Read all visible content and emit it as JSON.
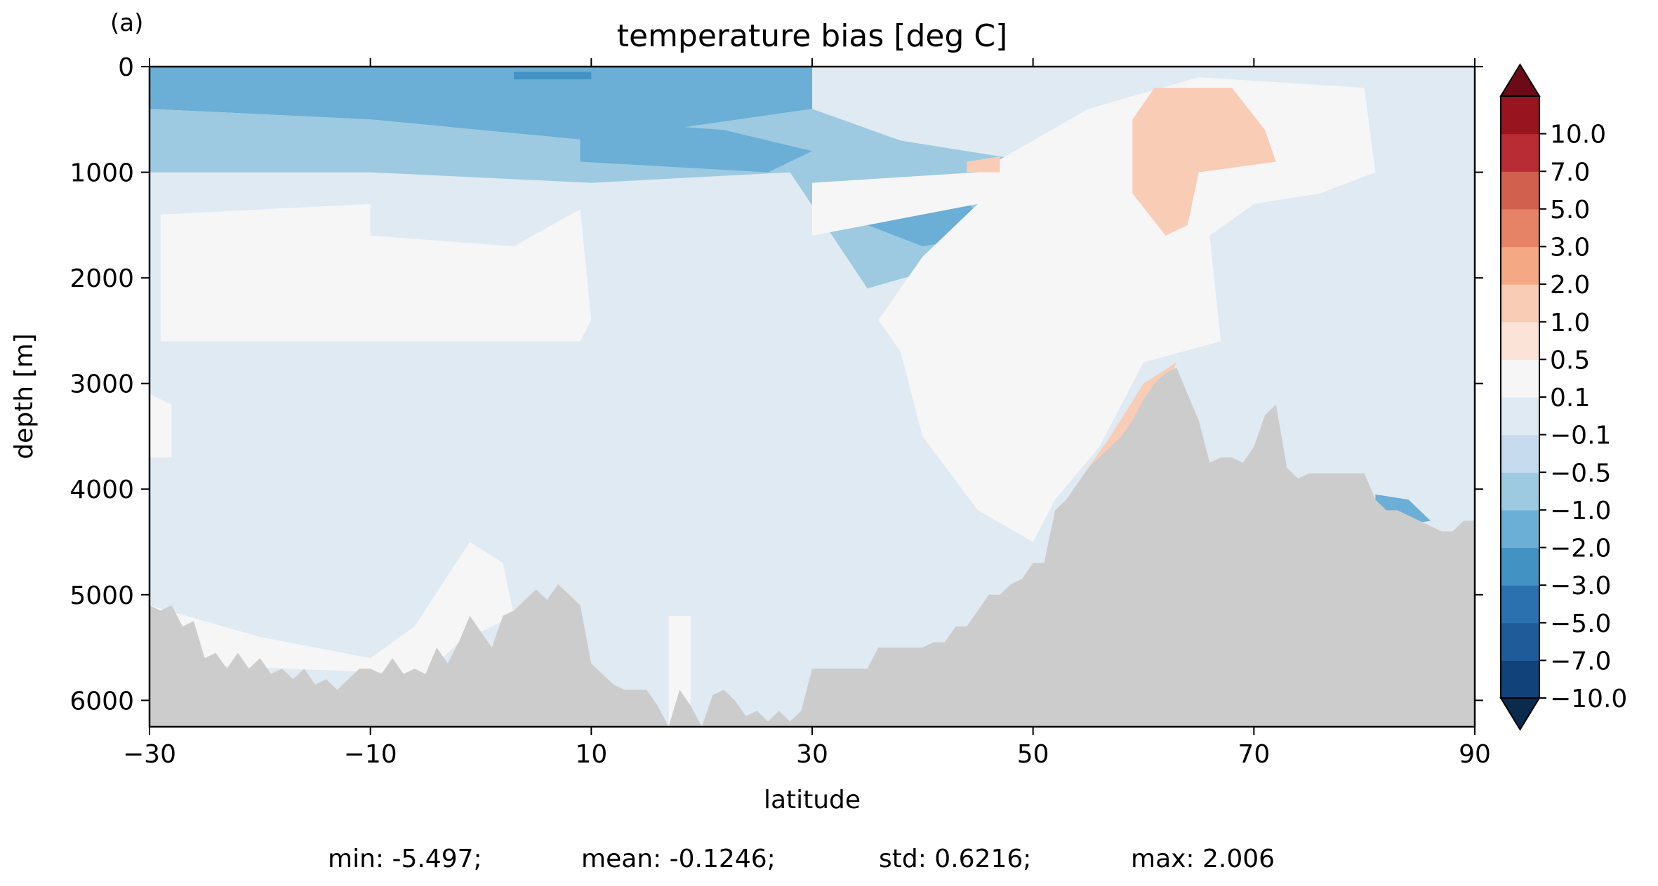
{
  "chart_data": {
    "type": "heatmap",
    "panel_label": "(a)",
    "title": "temperature bias [deg C]",
    "xlabel": "latitude",
    "ylabel": "depth [m]",
    "xlim": [
      -30,
      90
    ],
    "ylim": [
      6250,
      0
    ],
    "y_inverted": true,
    "x_ticks": [
      -30,
      -10,
      10,
      30,
      50,
      70,
      90
    ],
    "x_tick_labels": [
      "−30",
      "−10",
      "10",
      "30",
      "50",
      "70",
      "90"
    ],
    "y_ticks": [
      0,
      1000,
      2000,
      3000,
      4000,
      5000,
      6000
    ],
    "y_tick_labels": [
      "0",
      "1000",
      "2000",
      "3000",
      "4000",
      "5000",
      "6000"
    ],
    "colorbar": {
      "levels": [
        -10,
        -7,
        -5,
        -3,
        -2,
        -1,
        -0.5,
        -0.1,
        0.1,
        0.5,
        1,
        2,
        3,
        5,
        7,
        10
      ],
      "labels": [
        "−10.0",
        "−7.0",
        "−5.0",
        "−3.0",
        "−2.0",
        "−1.0",
        "−0.5",
        "−0.1",
        "0.1",
        "0.5",
        "1.0",
        "2.0",
        "3.0",
        "5.0",
        "7.0",
        "10.0"
      ],
      "colors": [
        "#11427a",
        "#1f5b99",
        "#2b71b0",
        "#4293c4",
        "#6baed6",
        "#9dcae1",
        "#c6dcee",
        "#dfeaf3",
        "#f6f6f6",
        "#fbe3d7",
        "#f9ccb6",
        "#f4a883",
        "#e68265",
        "#d1604e",
        "#b92c33",
        "#98141e"
      ],
      "extend_under_color": "#0b2b4d",
      "extend_over_color": "#6c0a18",
      "extend": "both"
    },
    "bathymetry_color": "#cccccc",
    "bathymetry": [
      [
        -30,
        5100
      ],
      [
        -29,
        5150
      ],
      [
        -28,
        5100
      ],
      [
        -27,
        5300
      ],
      [
        -26,
        5250
      ],
      [
        -25,
        5600
      ],
      [
        -24,
        5550
      ],
      [
        -23,
        5700
      ],
      [
        -22,
        5550
      ],
      [
        -21,
        5700
      ],
      [
        -20,
        5600
      ],
      [
        -19,
        5750
      ],
      [
        -18,
        5700
      ],
      [
        -17,
        5800
      ],
      [
        -16,
        5700
      ],
      [
        -15,
        5850
      ],
      [
        -14,
        5800
      ],
      [
        -13,
        5900
      ],
      [
        -12,
        5800
      ],
      [
        -11,
        5700
      ],
      [
        -10,
        5700
      ],
      [
        -9,
        5750
      ],
      [
        -8,
        5600
      ],
      [
        -7,
        5750
      ],
      [
        -6,
        5700
      ],
      [
        -5,
        5750
      ],
      [
        -4,
        5500
      ],
      [
        -3,
        5650
      ],
      [
        -2,
        5450
      ],
      [
        -1,
        5200
      ],
      [
        0,
        5350
      ],
      [
        1,
        5500
      ],
      [
        2,
        5200
      ],
      [
        3,
        5150
      ],
      [
        4,
        5050
      ],
      [
        5,
        4950
      ],
      [
        6,
        5050
      ],
      [
        7,
        4900
      ],
      [
        8,
        5000
      ],
      [
        9,
        5100
      ],
      [
        10,
        5650
      ],
      [
        11,
        5750
      ],
      [
        12,
        5850
      ],
      [
        13,
        5900
      ],
      [
        14,
        5900
      ],
      [
        15,
        5900
      ],
      [
        16,
        6050
      ],
      [
        17,
        6250
      ],
      [
        18,
        5900
      ],
      [
        19,
        6050
      ],
      [
        20,
        6250
      ],
      [
        21,
        5950
      ],
      [
        22,
        5900
      ],
      [
        23,
        6000
      ],
      [
        24,
        6150
      ],
      [
        25,
        6100
      ],
      [
        26,
        6200
      ],
      [
        27,
        6100
      ],
      [
        28,
        6200
      ],
      [
        29,
        6100
      ],
      [
        30,
        5700
      ],
      [
        31,
        5700
      ],
      [
        32,
        5700
      ],
      [
        33,
        5700
      ],
      [
        34,
        5700
      ],
      [
        35,
        5700
      ],
      [
        36,
        5500
      ],
      [
        37,
        5500
      ],
      [
        38,
        5500
      ],
      [
        39,
        5500
      ],
      [
        40,
        5500
      ],
      [
        41,
        5450
      ],
      [
        42,
        5450
      ],
      [
        43,
        5300
      ],
      [
        44,
        5300
      ],
      [
        45,
        5150
      ],
      [
        46,
        5000
      ],
      [
        47,
        5000
      ],
      [
        48,
        4900
      ],
      [
        49,
        4850
      ],
      [
        50,
        4700
      ],
      [
        51,
        4700
      ],
      [
        52,
        4200
      ],
      [
        53,
        4100
      ],
      [
        54,
        3950
      ],
      [
        55,
        3800
      ],
      [
        56,
        3700
      ],
      [
        57,
        3600
      ],
      [
        58,
        3500
      ],
      [
        59,
        3350
      ],
      [
        60,
        3150
      ],
      [
        61,
        3000
      ],
      [
        62,
        2900
      ],
      [
        63,
        2850
      ],
      [
        64,
        3100
      ],
      [
        65,
        3350
      ],
      [
        66,
        3750
      ],
      [
        67,
        3700
      ],
      [
        68,
        3700
      ],
      [
        69,
        3750
      ],
      [
        70,
        3600
      ],
      [
        71,
        3300
      ],
      [
        72,
        3200
      ],
      [
        73,
        3800
      ],
      [
        74,
        3900
      ],
      [
        75,
        3850
      ],
      [
        76,
        3850
      ],
      [
        77,
        3850
      ],
      [
        78,
        3850
      ],
      [
        79,
        3850
      ],
      [
        80,
        3850
      ],
      [
        81,
        4100
      ],
      [
        82,
        4200
      ],
      [
        83,
        4200
      ],
      [
        84,
        4250
      ],
      [
        85,
        4300
      ],
      [
        86,
        4350
      ],
      [
        87,
        4400
      ],
      [
        88,
        4400
      ],
      [
        89,
        4300
      ],
      [
        90,
        4300
      ]
    ],
    "bias_regions": [
      {
        "level": -1.0,
        "points": [
          [
            -30,
            0
          ],
          [
            30,
            0
          ],
          [
            30,
            400
          ],
          [
            10,
            700
          ],
          [
            -10,
            500
          ],
          [
            -30,
            400
          ]
        ]
      },
      {
        "level": -0.5,
        "points": [
          [
            -30,
            400
          ],
          [
            -10,
            500
          ],
          [
            10,
            700
          ],
          [
            30,
            400
          ],
          [
            38,
            700
          ],
          [
            50,
            900
          ],
          [
            45,
            1800
          ],
          [
            35,
            2100
          ],
          [
            28,
            1000
          ],
          [
            10,
            1100
          ],
          [
            -10,
            1000
          ],
          [
            -30,
            1000
          ]
        ]
      },
      {
        "level": -1.0,
        "points": [
          [
            9,
            500
          ],
          [
            22,
            600
          ],
          [
            30,
            800
          ],
          [
            26,
            1000
          ],
          [
            9,
            900
          ]
        ]
      },
      {
        "level": -2.0,
        "points": [
          [
            3,
            50
          ],
          [
            10,
            50
          ],
          [
            10,
            120
          ],
          [
            3,
            120
          ]
        ]
      },
      {
        "level": -1.0,
        "points": [
          [
            35,
            1100
          ],
          [
            44,
            1250
          ],
          [
            46,
            1600
          ],
          [
            40,
            1700
          ],
          [
            35,
            1500
          ]
        ]
      },
      {
        "level": 0.1,
        "points": [
          [
            -29,
            1400
          ],
          [
            -10,
            1300
          ],
          [
            -10,
            1600
          ],
          [
            3,
            1700
          ],
          [
            9,
            1350
          ],
          [
            10,
            2400
          ],
          [
            9,
            2600
          ],
          [
            -29,
            2600
          ]
        ]
      },
      {
        "level": 0.1,
        "points": [
          [
            30,
            1100
          ],
          [
            45,
            1000
          ],
          [
            55,
            400
          ],
          [
            65,
            100
          ],
          [
            80,
            200
          ],
          [
            81,
            1000
          ],
          [
            76,
            1200
          ],
          [
            70,
            1300
          ],
          [
            66,
            1600
          ],
          [
            67,
            2600
          ],
          [
            60,
            2800
          ],
          [
            56,
            3600
          ],
          [
            52,
            4100
          ],
          [
            50,
            4500
          ],
          [
            45,
            4200
          ],
          [
            40,
            3500
          ],
          [
            38,
            2700
          ],
          [
            36,
            2400
          ],
          [
            40,
            1800
          ],
          [
            45,
            1300
          ],
          [
            30,
            1600
          ]
        ]
      },
      {
        "level": 1.0,
        "points": [
          [
            61,
            200
          ],
          [
            68,
            200
          ],
          [
            71,
            600
          ],
          [
            72,
            900
          ],
          [
            65,
            1000
          ],
          [
            64,
            1500
          ],
          [
            62,
            1600
          ],
          [
            59,
            1200
          ],
          [
            59,
            500
          ]
        ]
      },
      {
        "level": 1.0,
        "points": [
          [
            55,
            3800
          ],
          [
            57,
            3500
          ],
          [
            60,
            3000
          ],
          [
            63,
            2800
          ],
          [
            60,
            3500
          ],
          [
            56,
            3800
          ]
        ]
      },
      {
        "level": 1.0,
        "points": [
          [
            44,
            900
          ],
          [
            47,
            850
          ],
          [
            47,
            1000
          ],
          [
            44,
            1000
          ]
        ]
      },
      {
        "level": 0.1,
        "points": [
          [
            -30,
            3100
          ],
          [
            -28,
            3200
          ],
          [
            -28,
            3700
          ],
          [
            -30,
            3700
          ]
        ]
      },
      {
        "level": 0.1,
        "points": [
          [
            -30,
            5100
          ],
          [
            -20,
            5400
          ],
          [
            -10,
            5600
          ],
          [
            -6,
            5300
          ],
          [
            -1,
            4500
          ],
          [
            2,
            4700
          ],
          [
            3,
            5200
          ],
          [
            -2,
            5450
          ],
          [
            -5,
            5750
          ],
          [
            -30,
            5650
          ]
        ]
      },
      {
        "level": 0.1,
        "points": [
          [
            17,
            5200
          ],
          [
            19,
            5200
          ],
          [
            19,
            6250
          ],
          [
            17,
            6250
          ]
        ]
      },
      {
        "level": -1.0,
        "points": [
          [
            81,
            4050
          ],
          [
            84,
            4100
          ],
          [
            86,
            4300
          ],
          [
            83,
            4350
          ],
          [
            81,
            4200
          ]
        ]
      },
      {
        "level": -3.0,
        "points": [
          [
            81,
            4150
          ],
          [
            82,
            4200
          ],
          [
            82,
            4450
          ],
          [
            81,
            4500
          ]
        ]
      }
    ],
    "stats": {
      "min": "min: -5.497;",
      "mean": "mean: -0.1246;",
      "std": "std: 0.6216;",
      "max": "max: 2.006"
    }
  }
}
